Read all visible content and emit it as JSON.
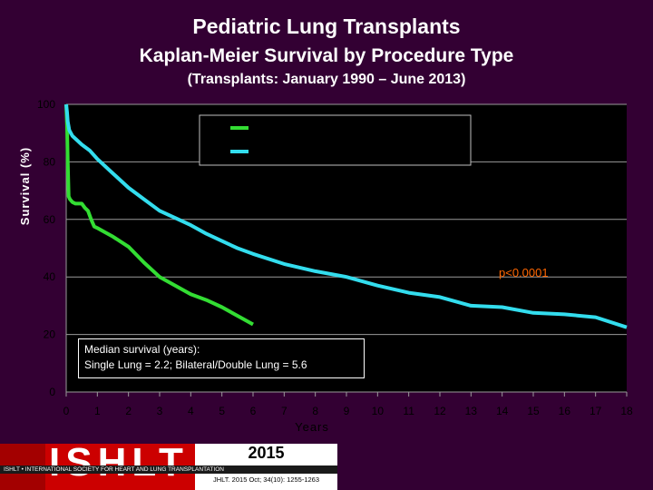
{
  "titles": {
    "line1": "Pediatric Lung Transplants",
    "line2": "Kaplan-Meier Survival by Procedure Type",
    "line3": "(Transplants: January 1990 – June 2013)"
  },
  "chart_data": {
    "type": "line",
    "title": "Kaplan-Meier Survival by Procedure Type",
    "xlabel": "Years",
    "ylabel": "Survival (%)",
    "xlim": [
      0,
      18
    ],
    "ylim": [
      0,
      100
    ],
    "x_ticks": [
      "0",
      "1",
      "2",
      "3",
      "4",
      "5",
      "6",
      "7",
      "8",
      "9",
      "10",
      "11",
      "12",
      "13",
      "14",
      "15",
      "16",
      "17",
      "18"
    ],
    "y_ticks": [
      "0",
      "20",
      "40",
      "60",
      "80",
      "100"
    ],
    "grid": "horizontal",
    "legend_placement": "top-center",
    "series": [
      {
        "color": "#33dd33",
        "x": [
          0,
          0.03,
          0.05,
          0.08,
          0.12,
          0.2,
          0.3,
          0.5,
          0.6,
          0.7,
          0.8,
          0.9,
          1.0,
          1.5,
          2.0,
          2.5,
          3.0,
          3.5,
          4.0,
          4.5,
          5.0,
          5.5,
          6.0
        ],
        "y": [
          100,
          92,
          80,
          68,
          67,
          66,
          65.5,
          65.5,
          64,
          63,
          60,
          57.5,
          57,
          54,
          50.5,
          45,
          40,
          37,
          34,
          32,
          29.5,
          26.5,
          23.5
        ]
      },
      {
        "color": "#33ddee",
        "x": [
          0,
          0.03,
          0.05,
          0.1,
          0.2,
          0.3,
          0.5,
          0.75,
          1.0,
          1.5,
          2.0,
          2.5,
          3.0,
          3.5,
          4.0,
          4.5,
          5.0,
          5.5,
          6.0,
          7.0,
          8.0,
          9.0,
          10.0,
          11.0,
          12.0,
          13.0,
          14.0,
          15.0,
          16.0,
          17.0,
          18.0
        ],
        "y": [
          100,
          97,
          94,
          91,
          89,
          88,
          86,
          84,
          81,
          76,
          71,
          67,
          63,
          60.5,
          58,
          55,
          52.5,
          50,
          48,
          44.5,
          42,
          40,
          37,
          34.5,
          33,
          30,
          29.5,
          27.5,
          27,
          26,
          22.5
        ]
      }
    ],
    "annotations": {
      "pvalue": "p<0.0001",
      "median_line1": "Median survival (years):",
      "median_line2": "Single Lung = 2.2; Bilateral/Double Lung = 5.6"
    }
  },
  "footer": {
    "logo": "ISHLT",
    "org_name": "ISHLT • INTERNATIONAL SOCIETY FOR HEART AND LUNG TRANSPLANTATION",
    "year": "2015",
    "citation": "JHLT. 2015 Oct; 34(10): 1255-1263"
  }
}
